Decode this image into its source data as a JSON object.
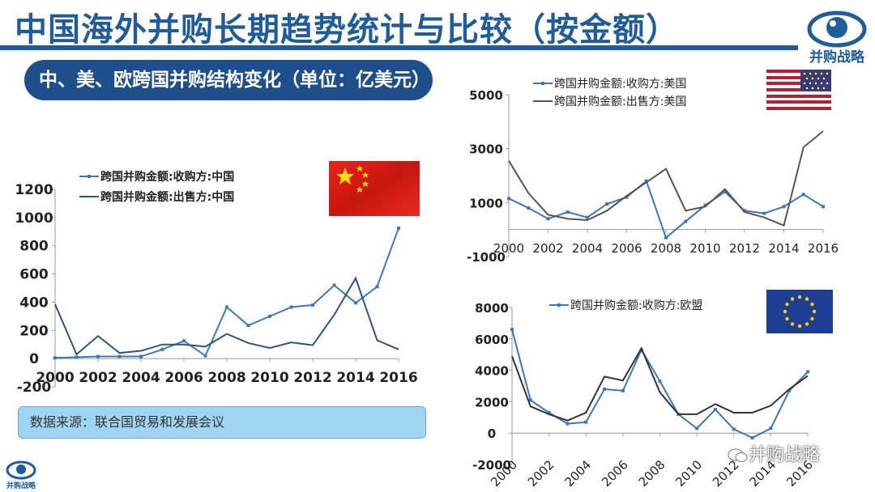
{
  "slide": {
    "title": "中国海外并购长期趋势统计与比较（按金额）",
    "subtitle": "中、美、欧跨国并购结构变化（单位：亿美元）",
    "source": "数据来源：联合国贸易和发展会议",
    "logo_text": "并购战略",
    "watermark": "并购战略",
    "accent_color": "#1f5c99"
  },
  "chart_data": [
    {
      "type": "line",
      "ylim": [
        -200,
        1200
      ],
      "yticks": [
        -200,
        0,
        200,
        400,
        600,
        800,
        1000,
        1200
      ],
      "xlim": [
        2000,
        2016
      ],
      "xticks": [
        2000,
        2002,
        2004,
        2006,
        2008,
        2010,
        2012,
        2014,
        2016
      ],
      "legend_position": "top",
      "series": [
        {
          "name": "跨国并购金额:收购方:中国",
          "color": "#3c78b4",
          "marker": true,
          "x": [
            2000,
            2001,
            2002,
            2003,
            2004,
            2005,
            2006,
            2007,
            2008,
            2009,
            2010,
            2011,
            2012,
            2013,
            2014,
            2015,
            2016
          ],
          "values": [
            5,
            10,
            15,
            15,
            15,
            65,
            125,
            20,
            365,
            235,
            300,
            365,
            380,
            520,
            395,
            510,
            925
          ]
        },
        {
          "name": "跨国并购金额:出售方:中国",
          "color": "#2e5386",
          "marker": false,
          "x": [
            2000,
            2001,
            2002,
            2003,
            2004,
            2005,
            2006,
            2007,
            2008,
            2009,
            2010,
            2011,
            2012,
            2013,
            2014,
            2015,
            2016
          ],
          "values": [
            385,
            30,
            160,
            40,
            55,
            100,
            100,
            85,
            175,
            110,
            75,
            115,
            95,
            310,
            570,
            130,
            65
          ]
        }
      ]
    },
    {
      "type": "line",
      "ylim": [
        -1000,
        5000
      ],
      "yticks": [
        -1000,
        1000,
        3000,
        5000
      ],
      "xlim": [
        2000,
        2016
      ],
      "xticks": [
        2000,
        2002,
        2004,
        2006,
        2008,
        2010,
        2012,
        2014,
        2016
      ],
      "legend_position": "top",
      "series": [
        {
          "name": "跨国并购金额:收购方:美国",
          "color": "#3c78b4",
          "marker": true,
          "x": [
            2000,
            2001,
            2002,
            2003,
            2004,
            2005,
            2006,
            2007,
            2008,
            2009,
            2010,
            2011,
            2012,
            2013,
            2014,
            2015,
            2016
          ],
          "values": [
            1150,
            800,
            400,
            650,
            450,
            950,
            1200,
            1800,
            -300,
            300,
            900,
            1400,
            700,
            600,
            850,
            1300,
            850
          ]
        },
        {
          "name": "跨国并购金额:出售方:美国",
          "color": "#555555",
          "marker": false,
          "x": [
            2000,
            2001,
            2002,
            2003,
            2004,
            2005,
            2006,
            2007,
            2008,
            2009,
            2010,
            2011,
            2012,
            2013,
            2014,
            2015,
            2016
          ],
          "values": [
            2550,
            1350,
            550,
            400,
            350,
            700,
            1250,
            1750,
            2250,
            700,
            850,
            1500,
            650,
            450,
            150,
            3050,
            3650
          ]
        }
      ]
    },
    {
      "type": "line",
      "ylim": [
        -2000,
        8000
      ],
      "yticks": [
        -2000,
        0,
        2000,
        4000,
        6000,
        8000
      ],
      "xlim": [
        2000,
        2016
      ],
      "xticks": [
        2000,
        2002,
        2004,
        2006,
        2008,
        2010,
        2012,
        2014,
        2016
      ],
      "legend_position": "top",
      "series": [
        {
          "name": "跨国并购金额:收购方:欧盟",
          "color": "#3c78b4",
          "marker": true,
          "x": [
            2000,
            2001,
            2002,
            2003,
            2004,
            2005,
            2006,
            2007,
            2008,
            2009,
            2010,
            2011,
            2012,
            2013,
            2014,
            2015,
            2016
          ],
          "values": [
            6600,
            2100,
            1300,
            600,
            700,
            2800,
            2700,
            5300,
            3300,
            1200,
            300,
            1500,
            250,
            -300,
            300,
            2700,
            3900
          ]
        },
        {
          "name": "",
          "color": "#333333",
          "marker": false,
          "x": [
            2000,
            2001,
            2002,
            2003,
            2004,
            2005,
            2006,
            2007,
            2008,
            2009,
            2010,
            2011,
            2012,
            2013,
            2014,
            2015,
            2016
          ],
          "values": [
            4900,
            1700,
            1200,
            800,
            1300,
            3600,
            3350,
            5400,
            2600,
            1200,
            1200,
            1850,
            1300,
            1300,
            1750,
            2800,
            3650
          ]
        }
      ]
    }
  ]
}
